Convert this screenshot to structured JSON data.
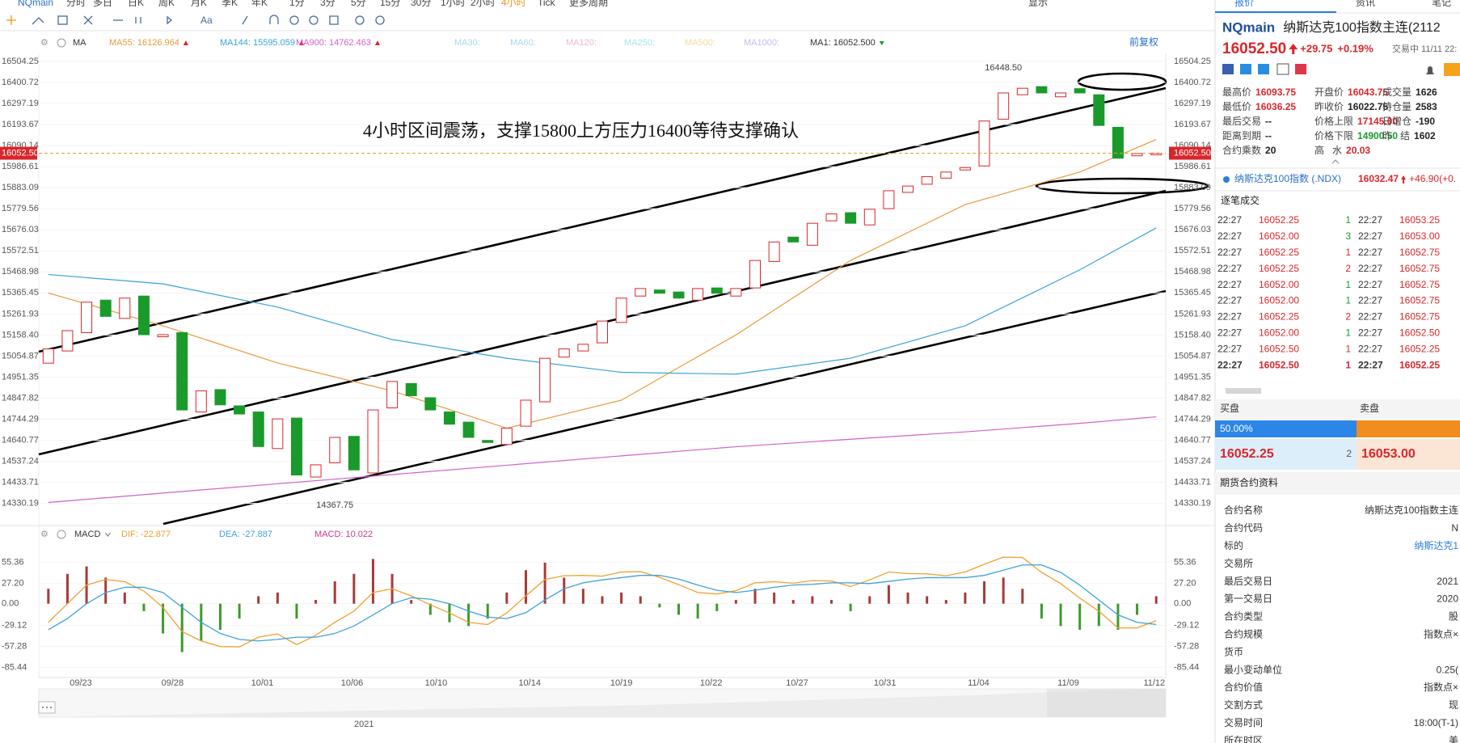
{
  "toolbar": {
    "items": [
      "NQmain",
      "分时",
      "多日",
      "日K",
      "周K",
      "月K",
      "季K",
      "年K",
      "1分",
      "3分",
      "5分",
      "15分",
      "30分",
      "1小时",
      "2小时",
      "4小时",
      "Tick",
      "更多周期"
    ],
    "active": 15,
    "tools": [
      "Aa"
    ],
    "display": "显示",
    "tabs": [
      "报价",
      "资讯",
      "笔记"
    ]
  },
  "chart_data": [
    {
      "type": "candlestick",
      "indicator_label": "MA",
      "adjust": "前复权",
      "note": "4小时区间震荡，支撑15800上方压力16400等待支撑确认",
      "navigator_year": "2021",
      "up_color": "#d9262b",
      "down_color": "#1a9a2a",
      "xlim": [
        -0.5,
        58.5
      ],
      "ylim": [
        14229.5,
        16531.7
      ],
      "yticks": [
        16504.25,
        16400.72,
        16297.19,
        16193.67,
        16090.14,
        15986.61,
        15883.09,
        15779.56,
        15676.03,
        15572.51,
        15468.98,
        15365.45,
        15261.93,
        {
          "value": 15158.4,
          "label": "15158.40"
        },
        15054.87,
        14951.35,
        14847.82,
        14744.29,
        14640.77,
        14537.24,
        14433.71,
        14330.19
      ],
      "xticks": [
        {
          "value": 1.7,
          "label": "09/23"
        },
        {
          "value": 6.5,
          "label": "09/28"
        },
        {
          "value": 11.2,
          "label": "10/01"
        },
        {
          "value": 15.9,
          "label": "10/06"
        },
        {
          "value": 20.3,
          "label": "10/10"
        },
        {
          "value": 25.2,
          "label": "10/14"
        },
        {
          "value": 30.0,
          "label": "10/19"
        },
        {
          "value": 34.7,
          "label": "10/22"
        },
        {
          "value": 39.2,
          "label": "10/27"
        },
        {
          "value": 43.8,
          "label": "10/31"
        },
        {
          "value": 48.7,
          "label": "11/04"
        },
        {
          "value": 53.4,
          "label": "11/09"
        },
        {
          "value": 57.9,
          "label": "11/12"
        }
      ],
      "open": [
        15020,
        15080,
        15170,
        15330,
        15240,
        15350,
        15150,
        15170,
        14780,
        14890,
        14810,
        14780,
        14600,
        14750,
        14460,
        14530,
        14660,
        14480,
        14800,
        14920,
        14850,
        14780,
        14730,
        14640,
        14620,
        14710,
        14830,
        15050,
        15080,
        15120,
        15220,
        15350,
        15380,
        15370,
        15330,
        15390,
        15350,
        15390,
        15520,
        15640,
        15600,
        15720,
        15760,
        15700,
        15780,
        15860,
        15900,
        15930,
        15970,
        15990,
        16220,
        16340,
        16380,
        16330,
        16370,
        16340,
        16180,
        16040,
        16045
      ],
      "close": [
        15090,
        15180,
        15320,
        15250,
        15340,
        15160,
        15160,
        14790,
        14884,
        14815,
        14770,
        14610,
        14746,
        14470,
        14520,
        14655,
        14495,
        14790,
        14930,
        14860,
        14790,
        14720,
        14655,
        14630,
        14700,
        14838,
        15044,
        15090,
        15113,
        15227,
        15340,
        15387,
        15364,
        15340,
        15387,
        15364,
        15387,
        15525,
        15616,
        15616,
        15708,
        15754,
        15708,
        15777,
        15868,
        15891,
        15937,
        15960,
        15982,
        16211,
        16349,
        16372,
        16349,
        16349,
        16349,
        16189,
        16028,
        16051,
        16052.5
      ],
      "ma_x": [
        0,
        6,
        12,
        18,
        24,
        30,
        36,
        42,
        48,
        54,
        58
      ],
      "series": [
        {
          "name": "MA55: 16126.964",
          "color": "#e89a3c",
          "values": [
            15365,
            15204,
            15021,
            14884,
            14700,
            14838,
            15159,
            15525,
            15800,
            15960,
            16120
          ]
        },
        {
          "name": "MA144: 15595.059",
          "color": "#3aa3d6",
          "values": [
            15456,
            15410,
            15296,
            15136,
            15044,
            14975,
            14966,
            15044,
            15204,
            15479,
            15685
          ]
        },
        {
          "name": "MA900: 14762.463",
          "color": "#d062c8",
          "values": [
            14335,
            14381,
            14427,
            14472,
            14518,
            14564,
            14609,
            14646,
            14682,
            14724,
            14756
          ]
        }
      ],
      "inactive_ma": [
        {
          "text": "MA30:",
          "color": "#a9d8ee"
        },
        {
          "text": "MA60:",
          "color": "#a9d8ee"
        },
        {
          "text": "MA120:",
          "color": "#f1b8d8"
        },
        {
          "text": "MA250:",
          "color": "#a8e6ef"
        },
        {
          "text": "MA500:",
          "color": "#f3dca0"
        },
        {
          "text": "MA1000:",
          "color": "#c9b9ea"
        }
      ],
      "legend_extra": "MA1: 16052.500",
      "last_price": {
        "value": 16052.5,
        "label": "16052.50"
      },
      "annotations": [
        {
          "text": "16448.50",
          "value": 16448.5,
          "x": 50
        },
        {
          "text": "14367.75",
          "value": 14367.75,
          "x": 15
        }
      ]
    },
    {
      "type": "macd",
      "indicator_label": "MACD",
      "xlim": [
        -0.5,
        58.5
      ],
      "ylim": [
        -99.1,
        77.8
      ],
      "yticks": [
        55.36,
        {
          "value": 27.2,
          "label": "27.20"
        },
        {
          "value": 0,
          "label": "0.00"
        },
        -29.12,
        -57.28,
        -85.44
      ],
      "histogram": {
        "name": "MACD: 10.022",
        "legend_color": "#cc3a8a",
        "up_color": "#a83a3a",
        "down_color": "#3d9a2a",
        "values": [
          20,
          40,
          50,
          35,
          15,
          -10,
          -40,
          -65,
          -50,
          -35,
          -20,
          10,
          15,
          -20,
          5,
          30,
          40,
          60,
          40,
          5,
          -15,
          -25,
          -30,
          -20,
          15,
          45,
          55,
          35,
          20,
          10,
          15,
          10,
          -5,
          -15,
          -20,
          -10,
          5,
          20,
          15,
          5,
          10,
          5,
          -10,
          10,
          25,
          15,
          10,
          5,
          15,
          30,
          35,
          20,
          -20,
          -30,
          -35,
          -30,
          -35,
          -15,
          10.022
        ]
      },
      "series": [
        {
          "name": "DIF: -22.877",
          "color": "#f0a030",
          "values": [
            -25,
            0,
            25,
            32.5,
            29.5,
            17,
            -5,
            -37.5,
            -50,
            -57.5,
            -58,
            -45,
            -40.5,
            -55,
            -42.5,
            -25,
            -10,
            15,
            20,
            10.5,
            -1.5,
            -12.5,
            -25,
            -28,
            -12.5,
            10.5,
            32.5,
            37.5,
            38,
            37,
            42.5,
            43,
            35.5,
            25.5,
            15,
            13,
            17.5,
            28,
            29.5,
            27.5,
            31,
            30.5,
            23,
            32,
            42.5,
            40.5,
            40,
            37.5,
            42.5,
            53,
            62.5,
            62,
            42,
            27,
            7.5,
            -10,
            -32.5,
            -32.5,
            -22.877
          ]
        },
        {
          "name": "DEA: -27.887",
          "color": "#3ea3d8",
          "values": [
            -35,
            -20,
            0,
            15,
            22,
            22,
            15,
            -5,
            -25,
            -40,
            -48,
            -50,
            -48,
            -45,
            -45,
            -40,
            -30,
            -15,
            0,
            8,
            6,
            0,
            -10,
            -18,
            -20,
            -12,
            5,
            20,
            28,
            32,
            35,
            38,
            38,
            33,
            25,
            18,
            15,
            18,
            22,
            25,
            26,
            28,
            28,
            27,
            30,
            33,
            35,
            35,
            35,
            38,
            45,
            52,
            52,
            42,
            25,
            5,
            -15,
            -25,
            -27.887
          ]
        }
      ]
    }
  ],
  "right_panel": {
    "symbol": "NQmain",
    "name": "纳斯达克100指数主连(2112",
    "price": "16052.50",
    "change": "+29.75",
    "change_pct": "+0.19%",
    "status": "交易中 11/11 22:",
    "stats": [
      {
        "label": "最高价",
        "value": "16093.75",
        "color": "#d9262b"
      },
      {
        "label": "开盘价",
        "value": "16043.75",
        "color": "#d9262b"
      },
      {
        "label": "成交量",
        "value": "1626",
        "color": "#222"
      },
      {
        "label": "最低价",
        "value": "16036.25",
        "color": "#d9262b"
      },
      {
        "label": "昨收价",
        "value": "16022.75",
        "color": "#222"
      },
      {
        "label": "持仓量",
        "value": "2583",
        "color": "#222"
      },
      {
        "label": "最后交易",
        "value": "--",
        "color": "#222"
      },
      {
        "label": "价格上限",
        "value": "17145.00",
        "color": "#d9262b"
      },
      {
        "label": "日增仓",
        "value": "-190",
        "color": "#222"
      },
      {
        "label": "距离到期",
        "value": "--",
        "color": "#222"
      },
      {
        "label": "价格下限",
        "value": "14900.50",
        "color": "#1a9a2a"
      },
      {
        "label": "昨   结",
        "value": "1602",
        "color": "#222"
      },
      {
        "label": "合约乘数",
        "value": "20",
        "color": "#222"
      },
      {
        "label": "高   水",
        "value": "20.03",
        "color": "#d9262b"
      }
    ],
    "index": {
      "name": "纳斯达克100指数 (.NDX)",
      "price": "16032.47",
      "change": "+46.90(+0."
    },
    "ticks_title": "逐笔成交",
    "ticks": [
      [
        "22:27",
        "16052.25",
        "1",
        "22:27",
        "16053.25"
      ],
      [
        "22:27",
        "16052.00",
        "3",
        "22:27",
        "16053.00"
      ],
      [
        "22:27",
        "16052.25",
        "1",
        "22:27",
        "16052.75"
      ],
      [
        "22:27",
        "16052.25",
        "2",
        "22:27",
        "16052.75"
      ],
      [
        "22:27",
        "16052.00",
        "1",
        "22:27",
        "16052.75"
      ],
      [
        "22:27",
        "16052.00",
        "1",
        "22:27",
        "16052.75"
      ],
      [
        "22:27",
        "16052.25",
        "2",
        "22:27",
        "16052.75"
      ],
      [
        "22:27",
        "16052.00",
        "1",
        "22:27",
        "16052.50"
      ],
      [
        "22:27",
        "16052.50",
        "1",
        "22:27",
        "16052.25"
      ],
      [
        "22:27",
        "16052.50",
        "1",
        "22:27",
        "16052.25"
      ]
    ],
    "tick_vol_colors": [
      "#1a9a2a",
      "#1a9a2a",
      "#d9262b",
      "#d9262b",
      "#1a9a2a",
      "#1a9a2a",
      "#d9262b",
      "#1a9a2a",
      "#d9262b",
      "#d9262b"
    ],
    "bid_label": "买盘",
    "ask_label": "卖盘",
    "bid_ratio": "50.00%",
    "bid_price": "16052.25",
    "bid_size": "2",
    "ask_price": "16053.00",
    "contract_title": "期货合约资料",
    "contract": [
      {
        "label": "合约名称",
        "value": "纳斯达克100指数主连"
      },
      {
        "label": "合约代码",
        "value": "N"
      },
      {
        "label": "标的",
        "value": "纳斯达克1",
        "link": true
      },
      {
        "label": "交易所"
      },
      {
        "label": "最后交易日",
        "value": "2021"
      },
      {
        "label": "第一交易日",
        "value": "2020"
      },
      {
        "label": "合约类型",
        "value": "股"
      },
      {
        "label": "合约规模",
        "value": "指数点×"
      },
      {
        "label": "货币"
      },
      {
        "label": "最小变动单位",
        "value": "0.25("
      },
      {
        "label": "合约价值",
        "value": "指数点×"
      },
      {
        "label": "交割方式",
        "value": "现"
      },
      {
        "label": "交易时间",
        "value": "18:00(T-1)"
      },
      {
        "label": "所在时区",
        "value": "美"
      }
    ]
  }
}
